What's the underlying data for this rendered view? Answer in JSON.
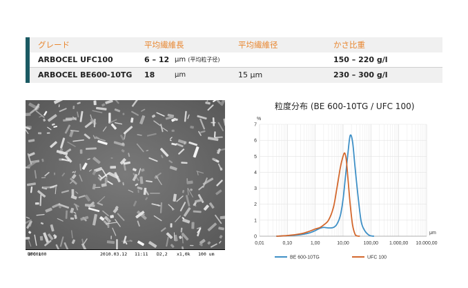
{
  "spec_table": {
    "headers": [
      "グレード",
      "平均繊維長",
      "平均繊維径",
      "かさ比重"
    ],
    "rows": [
      {
        "grade": "ARBOCEL UFC100",
        "length": "6 – 12",
        "length_unit": "μm",
        "length_note": "(平均粒子径)",
        "diameter": "",
        "density": "150 – 220 g/l"
      },
      {
        "grade": "ARBOCEL BE600-10TG",
        "length": "18",
        "length_unit": "μm",
        "length_note": "",
        "diameter": "15 μm",
        "density": "230 – 300 g/l"
      }
    ],
    "colors": {
      "header_text": "#e8862f",
      "accent_bar": "#1b5a63",
      "row_band": "#f0f0f0"
    }
  },
  "sem_image": {
    "label": "UFC 100",
    "magnification": "1000x",
    "date": "2010.03.12",
    "time": "11:11",
    "detector": "D2,2",
    "zoom": "x1,0k",
    "scale": "100 um"
  },
  "chart_data": {
    "type": "line",
    "title": "粒度分布 (BE 600-10TG / UFC 100)",
    "ylabel": "%",
    "xlabel": "μm",
    "x_scale": "log",
    "xlim": [
      0.01,
      10000
    ],
    "ylim": [
      0,
      7
    ],
    "x_ticks": [
      "0,01",
      "0,10",
      "1,00",
      "10,00",
      "100,00",
      "1.000,00",
      "10.000,00"
    ],
    "y_ticks": [
      "0",
      "1",
      "2",
      "3",
      "4",
      "5",
      "6",
      "7"
    ],
    "grid": true,
    "legend_position": "bottom",
    "series": [
      {
        "name": "BE 600-10TG",
        "color": "#3d8fc6",
        "x": [
          0.04,
          0.1,
          0.3,
          0.6,
          1.0,
          1.5,
          2.0,
          3.0,
          4.5,
          6.0,
          8.0,
          10.0,
          12.0,
          15.0,
          18.0,
          22.0,
          27.0,
          35.0,
          45.0,
          60.0,
          80.0,
          100.0,
          130.0
        ],
        "y": [
          0.0,
          0.03,
          0.1,
          0.2,
          0.35,
          0.5,
          0.55,
          0.52,
          0.55,
          0.75,
          1.3,
          2.3,
          3.6,
          5.2,
          6.3,
          5.9,
          4.3,
          2.4,
          0.9,
          0.35,
          0.1,
          0.02,
          0.0
        ]
      },
      {
        "name": "UFC 100",
        "color": "#d3672c",
        "x": [
          0.04,
          0.1,
          0.3,
          0.6,
          1.0,
          1.5,
          2.0,
          3.0,
          4.5,
          6.0,
          8.0,
          10.0,
          11.5,
          13.0,
          15.0,
          18.0,
          22.0,
          27.0,
          32.0,
          40.0
        ],
        "y": [
          0.0,
          0.04,
          0.15,
          0.3,
          0.45,
          0.55,
          0.7,
          1.0,
          1.8,
          3.0,
          4.3,
          5.0,
          5.2,
          4.8,
          3.6,
          2.0,
          0.7,
          0.12,
          0.02,
          0.0
        ]
      }
    ]
  }
}
